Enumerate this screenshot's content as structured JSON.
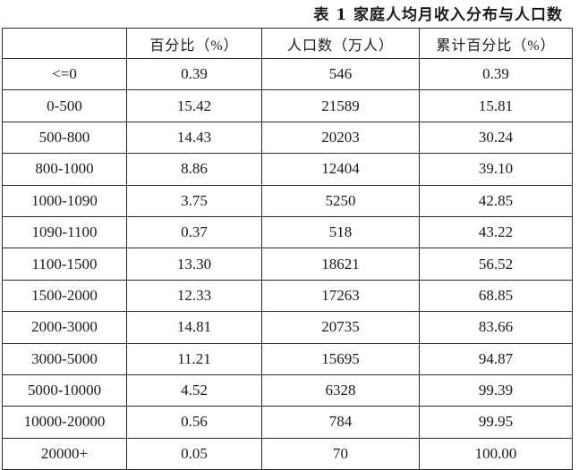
{
  "caption": "表 1  家庭人均月收入分布与人口数",
  "headers": [
    "",
    "百分比（%）",
    "人口数（万人）",
    "累计百分比（%）"
  ],
  "rows": [
    [
      "<=0",
      "0.39",
      "546",
      "0.39"
    ],
    [
      "0-500",
      "15.42",
      "21589",
      "15.81"
    ],
    [
      "500-800",
      "14.43",
      "20203",
      "30.24"
    ],
    [
      "800-1000",
      "8.86",
      "12404",
      "39.10"
    ],
    [
      "1000-1090",
      "3.75",
      "5250",
      "42.85"
    ],
    [
      "1090-1100",
      "0.37",
      "518",
      "43.22"
    ],
    [
      "1100-1500",
      "13.30",
      "18621",
      "56.52"
    ],
    [
      "1500-2000",
      "12.33",
      "17263",
      "68.85"
    ],
    [
      "2000-3000",
      "14.81",
      "20735",
      "83.66"
    ],
    [
      "3000-5000",
      "11.21",
      "15695",
      "94.87"
    ],
    [
      "5000-10000",
      "4.52",
      "6328",
      "99.39"
    ],
    [
      "10000-20000",
      "0.56",
      "784",
      "99.95"
    ],
    [
      "20000+",
      "0.05",
      "70",
      "100.00"
    ]
  ]
}
